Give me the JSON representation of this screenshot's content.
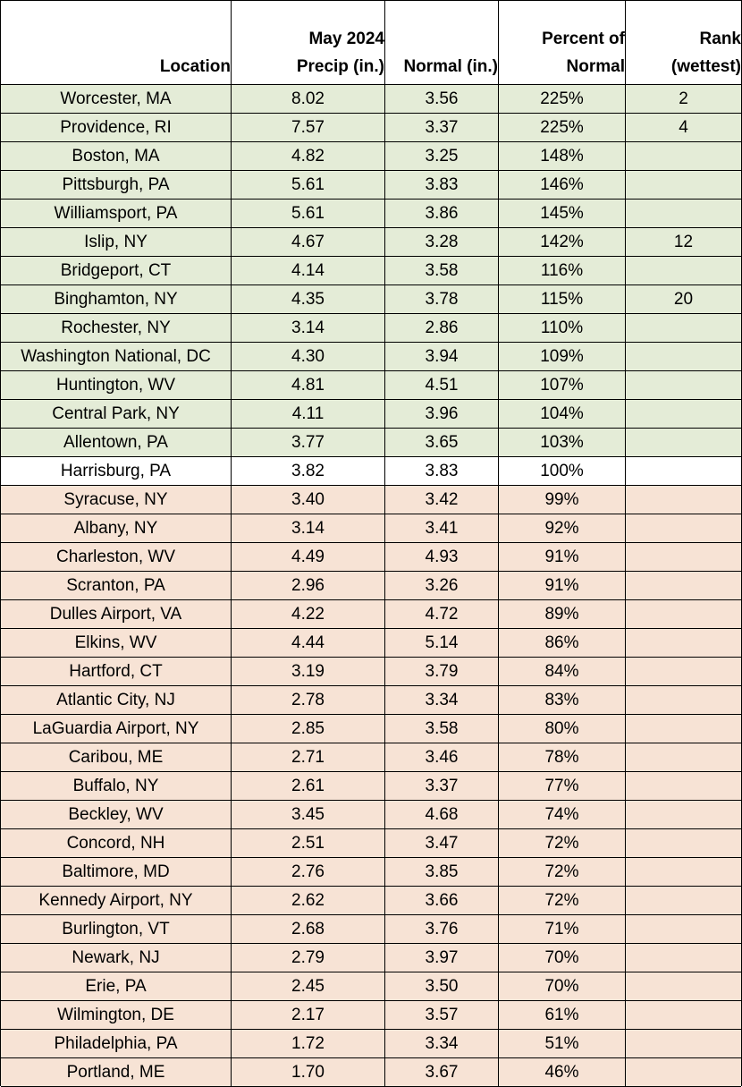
{
  "table": {
    "header": [
      [
        "Location"
      ],
      [
        "May 2024",
        "Precip (in.)"
      ],
      [
        "Normal (in.)"
      ],
      [
        "Percent of",
        "Normal"
      ],
      [
        "Rank",
        "(wettest)"
      ]
    ],
    "rows": [
      [
        "Worcester, MA",
        "8.02",
        "3.56",
        "225%",
        "2"
      ],
      [
        "Providence, RI",
        "7.57",
        "3.37",
        "225%",
        "4"
      ],
      [
        "Boston, MA",
        "4.82",
        "3.25",
        "148%"
      ],
      [
        "Pittsburgh, PA",
        "5.61",
        "3.83",
        "146%"
      ],
      [
        "Williamsport, PA",
        "5.61",
        "3.86",
        "145%"
      ],
      [
        "Islip, NY",
        "4.67",
        "3.28",
        "142%",
        "12"
      ],
      [
        "Bridgeport, CT",
        "4.14",
        "3.58",
        "116%"
      ],
      [
        "Binghamton, NY",
        "4.35",
        "3.78",
        "115%",
        "20"
      ],
      [
        "Rochester, NY",
        "3.14",
        "2.86",
        "110%"
      ],
      [
        "Washington National, DC",
        "4.30",
        "3.94",
        "109%"
      ],
      [
        "Huntington, WV",
        "4.81",
        "4.51",
        "107%"
      ],
      [
        "Central Park, NY",
        "4.11",
        "3.96",
        "104%"
      ],
      [
        "Allentown, PA",
        "3.77",
        "3.65",
        "103%"
      ],
      [
        "Harrisburg, PA",
        "3.82",
        "3.83",
        "100%"
      ],
      [
        "Syracuse, NY",
        "3.40",
        "3.42",
        "99%"
      ],
      [
        "Albany, NY",
        "3.14",
        "3.41",
        "92%"
      ],
      [
        "Charleston, WV",
        "4.49",
        "4.93",
        "91%"
      ],
      [
        "Scranton, PA",
        "2.96",
        "3.26",
        "91%"
      ],
      [
        "Dulles Airport, VA",
        "4.22",
        "4.72",
        "89%"
      ],
      [
        "Elkins, WV",
        "4.44",
        "5.14",
        "86%"
      ],
      [
        "Hartford, CT",
        "3.19",
        "3.79",
        "84%"
      ],
      [
        "Atlantic City, NJ",
        "2.78",
        "3.34",
        "83%"
      ],
      [
        "LaGuardia Airport, NY",
        "2.85",
        "3.58",
        "80%"
      ],
      [
        "Caribou, ME",
        "2.71",
        "3.46",
        "78%"
      ],
      [
        "Buffalo, NY",
        "2.61",
        "3.37",
        "77%"
      ],
      [
        "Beckley, WV",
        "3.45",
        "4.68",
        "74%"
      ],
      [
        "Concord, NH",
        "2.51",
        "3.47",
        "72%"
      ],
      [
        "Baltimore, MD",
        "2.76",
        "3.85",
        "72%"
      ],
      [
        "Kennedy Airport, NY",
        "2.62",
        "3.66",
        "72%"
      ],
      [
        "Burlington, VT",
        "2.68",
        "3.76",
        "71%"
      ],
      [
        "Newark, NJ",
        "2.79",
        "3.97",
        "70%"
      ],
      [
        "Erie, PA",
        "2.45",
        "3.50",
        "70%"
      ],
      [
        "Wilmington, DE",
        "2.17",
        "3.57",
        "61%"
      ],
      [
        "Philadelphia, PA",
        "1.72",
        "3.34",
        "51%"
      ],
      [
        "Portland, ME",
        "1.70",
        "3.67",
        "46%"
      ]
    ]
  }
}
